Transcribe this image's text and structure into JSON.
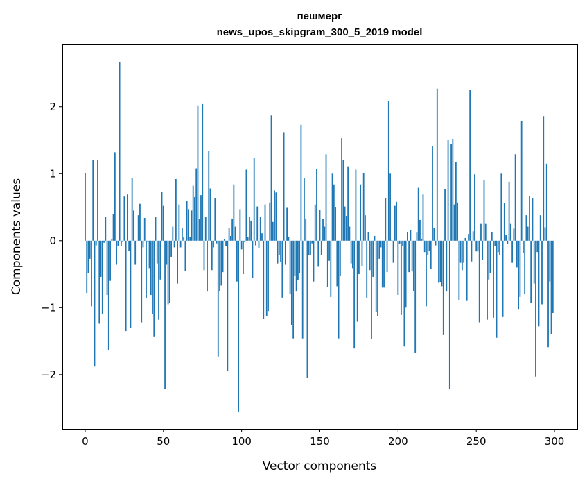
{
  "chart_data": {
    "type": "bar",
    "title": "пешмерг",
    "subtitle": "news_upos_skipgram_300_5_2019 model",
    "xlabel": "Vector components",
    "ylabel": "Components values",
    "xlim": [
      -14.6,
      314.6
    ],
    "ylim": [
      -2.81,
      2.93
    ],
    "xticks": [
      0,
      50,
      100,
      150,
      200,
      250,
      300
    ],
    "xtick_labels": [
      "0",
      "50",
      "100",
      "150",
      "200",
      "250",
      "300"
    ],
    "yticks": [
      -2,
      -1,
      0,
      1,
      2
    ],
    "ytick_labels": [
      "−2",
      "−1",
      "0",
      "1",
      "2"
    ],
    "grid": false,
    "color": "#1f77b4",
    "values": [
      1.01,
      -0.78,
      -0.48,
      -0.27,
      -0.98,
      1.2,
      -1.88,
      -0.07,
      1.2,
      -1.24,
      -0.54,
      -1.09,
      -0.03,
      0.36,
      -0.81,
      -1.63,
      -0.6,
      0.02,
      0.4,
      1.32,
      -0.36,
      -0.08,
      2.67,
      -0.08,
      -0.01,
      0.66,
      -1.35,
      0.69,
      -0.15,
      -1.3,
      0.94,
      0.45,
      -0.36,
      0.0,
      0.38,
      0.55,
      -1.22,
      -0.1,
      0.34,
      -0.86,
      -0.01,
      -0.41,
      -0.81,
      -1.09,
      -1.43,
      0.36,
      -0.34,
      -1.18,
      -0.58,
      0.73,
      0.52,
      -2.22,
      -0.36,
      -0.95,
      -0.93,
      -0.24,
      0.21,
      -0.1,
      0.92,
      -0.64,
      0.54,
      -0.1,
      0.19,
      0.05,
      -0.45,
      0.59,
      0.47,
      0.05,
      0.45,
      0.82,
      0.65,
      1.08,
      2.01,
      0.32,
      0.68,
      2.04,
      -0.44,
      0.35,
      -0.76,
      1.34,
      0.78,
      -0.44,
      -0.1,
      0.63,
      -0.04,
      -1.73,
      -0.75,
      -0.67,
      -0.47,
      0.02,
      -0.08,
      -1.95,
      0.19,
      0.07,
      0.33,
      0.84,
      0.21,
      -0.61,
      -2.55,
      0.47,
      -0.13,
      -0.5,
      -0.02,
      1.06,
      0.06,
      0.36,
      0.3,
      -0.56,
      1.24,
      -0.07,
      0.51,
      -0.11,
      0.35,
      0.11,
      -1.17,
      0.54,
      -1.13,
      -1.05,
      0.57,
      1.87,
      0.28,
      0.75,
      0.72,
      -0.34,
      -0.21,
      -0.32,
      -0.85,
      1.62,
      -0.36,
      0.49,
      0.05,
      -0.8,
      -1.26,
      -1.46,
      -0.53,
      -0.76,
      -0.59,
      -0.49,
      1.73,
      -1.46,
      0.93,
      0.33,
      -2.05,
      -0.22,
      -0.21,
      -0.04,
      -0.61,
      0.54,
      1.07,
      -0.39,
      0.46,
      -0.21,
      0.32,
      0.21,
      1.29,
      -0.69,
      -0.3,
      -0.84,
      1.0,
      0.84,
      0.5,
      -0.68,
      -1.46,
      -0.53,
      1.53,
      1.21,
      0.51,
      0.37,
      1.11,
      0.21,
      -0.34,
      -0.41,
      -1.61,
      1.06,
      -1.21,
      -0.5,
      0.84,
      -0.38,
      1.01,
      0.38,
      -0.85,
      0.13,
      -0.44,
      -1.47,
      -0.54,
      0.07,
      -1.07,
      -1.13,
      -0.27,
      -0.1,
      -0.7,
      -0.7,
      0.64,
      -0.47,
      2.08,
      1.0,
      0.01,
      -0.33,
      0.52,
      0.58,
      -0.81,
      -0.05,
      -1.11,
      -0.08,
      -1.58,
      -1.0,
      0.13,
      -0.47,
      0.16,
      -0.46,
      -0.75,
      -1.67,
      0.12,
      0.79,
      0.31,
      0.03,
      0.69,
      -0.17,
      -0.98,
      -0.22,
      -0.15,
      -0.42,
      1.41,
      0.19,
      -0.07,
      2.27,
      -0.63,
      -0.62,
      -0.68,
      -1.41,
      0.77,
      -0.76,
      1.5,
      -2.22,
      1.44,
      1.52,
      0.54,
      1.17,
      0.57,
      -0.89,
      -0.33,
      -0.44,
      -0.33,
      0.04,
      -0.9,
      0.1,
      2.25,
      -0.31,
      0.14,
      0.99,
      -0.16,
      -0.16,
      -1.22,
      0.25,
      -0.29,
      0.9,
      0.25,
      -1.18,
      -0.58,
      -0.48,
      0.13,
      -1.15,
      -0.08,
      -1.45,
      -0.17,
      -0.21,
      1.0,
      -1.14,
      0.56,
      0.08,
      -0.05,
      0.88,
      0.25,
      -0.33,
      0.18,
      1.29,
      -0.4,
      -1.02,
      -0.84,
      1.79,
      -0.18,
      -0.8,
      0.38,
      0.21,
      0.67,
      -0.93,
      0.64,
      -0.64,
      -2.03,
      -0.17,
      -1.28,
      0.38,
      -0.95,
      1.86,
      0.2,
      1.15,
      -1.59,
      -0.61,
      -1.4,
      -1.08
    ]
  }
}
